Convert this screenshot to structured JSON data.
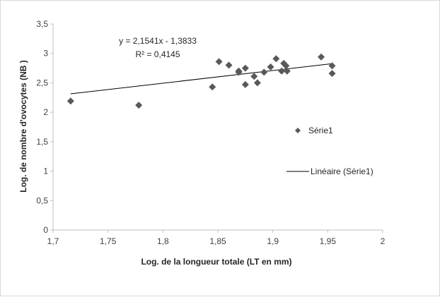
{
  "chart_data": {
    "type": "scatter",
    "xlabel": "Log. de la longueur totale (LT en mm)",
    "ylabel": "Log.  de nombre  d'ovocytes (NB )",
    "xlim": [
      1.7,
      2.0
    ],
    "ylim": [
      0,
      3.5
    ],
    "x_ticks": [
      "1,7",
      "1,75",
      "1,8",
      "1,85",
      "1,9",
      "1,95",
      "2"
    ],
    "x_tick_values": [
      1.7,
      1.75,
      1.8,
      1.85,
      1.9,
      1.95,
      2.0
    ],
    "y_ticks": [
      "0",
      "0,5",
      "1",
      "1,5",
      "2",
      "2,5",
      "3",
      "3,5"
    ],
    "y_tick_values": [
      0,
      0.5,
      1,
      1.5,
      2,
      2.5,
      3,
      3.5
    ],
    "grid": false,
    "legend_placement": "right",
    "series": [
      {
        "name": "Série1",
        "marker": "diamond",
        "color": "#595959",
        "points": [
          [
            1.716,
            2.19
          ],
          [
            1.778,
            2.12
          ],
          [
            1.845,
            2.43
          ],
          [
            1.851,
            2.86
          ],
          [
            1.86,
            2.8
          ],
          [
            1.869,
            2.7
          ],
          [
            1.869,
            2.68
          ],
          [
            1.875,
            2.75
          ],
          [
            1.875,
            2.47
          ],
          [
            1.883,
            2.61
          ],
          [
            1.886,
            2.5
          ],
          [
            1.892,
            2.68
          ],
          [
            1.898,
            2.77
          ],
          [
            1.903,
            2.91
          ],
          [
            1.908,
            2.7
          ],
          [
            1.91,
            2.83
          ],
          [
            1.912,
            2.79
          ],
          [
            1.913,
            2.7
          ],
          [
            1.944,
            2.94
          ],
          [
            1.954,
            2.79
          ],
          [
            1.954,
            2.66
          ]
        ]
      }
    ],
    "trendline": {
      "name": "Linéaire (Série1)",
      "slope": 2.1541,
      "intercept": -1.3833,
      "x_range": [
        1.716,
        1.954
      ],
      "color": "#000000"
    },
    "annotations": {
      "equation": "y = 2,1541x - 1,3833",
      "r_squared": "R² = 0,4145"
    },
    "legend": {
      "series_label": "Série1",
      "trend_label": "Linéaire (Série1)"
    }
  }
}
